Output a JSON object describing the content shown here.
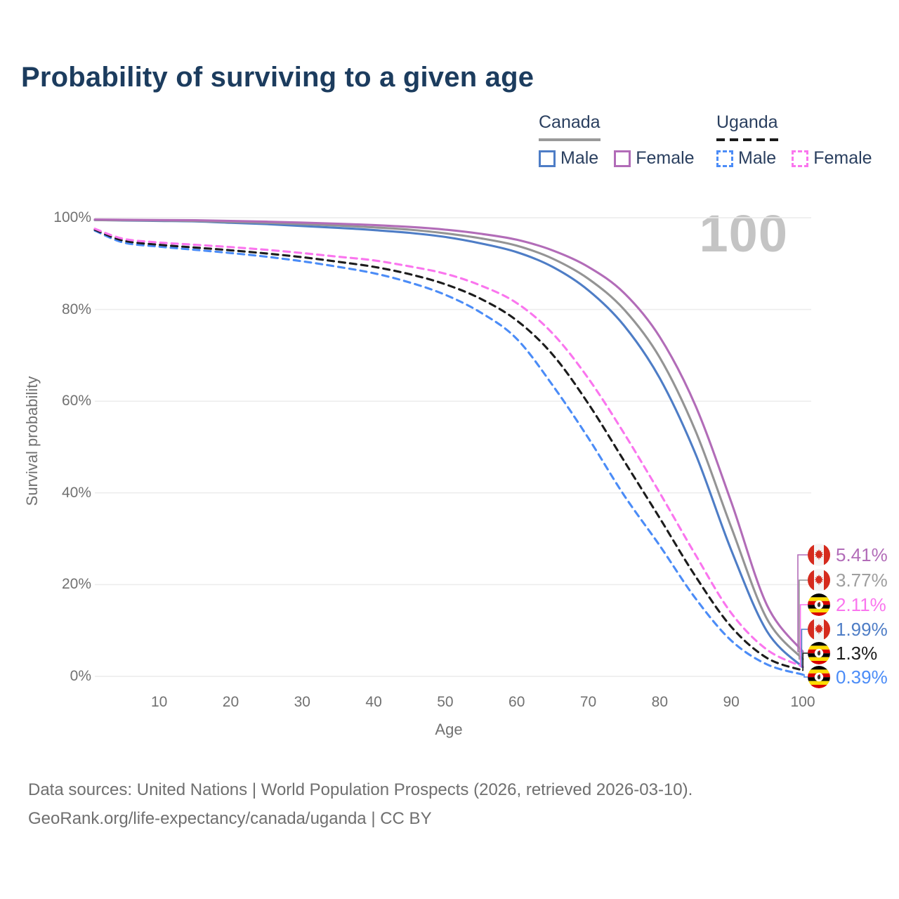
{
  "title": "Probability of surviving to a given age",
  "watermark_age": "100",
  "legend": {
    "groups": [
      {
        "label": "Canada",
        "underline": {
          "style": "solid",
          "color": "#9a9a9a"
        },
        "items": [
          {
            "label": "Male",
            "color": "#4e7dc6",
            "dashed": false
          },
          {
            "label": "Female",
            "color": "#b26cb8",
            "dashed": false
          }
        ]
      },
      {
        "label": "Uganda",
        "underline": {
          "style": "dashed",
          "color": "#1a1a1a"
        },
        "items": [
          {
            "label": "Male",
            "color": "#4b8cf7",
            "dashed": true
          },
          {
            "label": "Female",
            "color": "#fa75ee",
            "dashed": true
          }
        ]
      }
    ]
  },
  "axes": {
    "x": {
      "title": "Age",
      "ticks": [
        10,
        20,
        30,
        40,
        50,
        60,
        70,
        80,
        90,
        100
      ],
      "range": [
        1,
        100
      ]
    },
    "y": {
      "title": "Survival probability",
      "ticks": [
        "0%",
        "20%",
        "40%",
        "60%",
        "80%",
        "100%"
      ],
      "tick_values": [
        0,
        20,
        40,
        60,
        80,
        100
      ],
      "range": [
        0,
        100
      ]
    }
  },
  "chart_data": {
    "type": "line",
    "title": "Probability of surviving to a given age",
    "xlabel": "Age",
    "ylabel": "Survival probability",
    "xlim": [
      1,
      100
    ],
    "ylim": [
      0,
      100
    ],
    "grid": "horizontal",
    "x": [
      1,
      5,
      10,
      15,
      20,
      25,
      30,
      35,
      40,
      45,
      50,
      55,
      60,
      65,
      70,
      75,
      80,
      85,
      90,
      95,
      100
    ],
    "series": [
      {
        "key": "canada-female",
        "name": "Canada Female",
        "country": "Canada",
        "flag": "canada",
        "color": "#b26cb8",
        "dashed": false,
        "end_label": "5.41%",
        "values": [
          99.6,
          99.55,
          99.5,
          99.45,
          99.3,
          99.15,
          98.95,
          98.7,
          98.4,
          98.0,
          97.4,
          96.5,
          95.2,
          92.9,
          89.3,
          83.6,
          74.0,
          59.0,
          38.0,
          15.5,
          5.41
        ]
      },
      {
        "key": "canada-all",
        "name": "Canada",
        "country": "Canada",
        "flag": "canada",
        "color": "#949494",
        "dashed": false,
        "end_label": "3.77%",
        "values": [
          99.5,
          99.45,
          99.4,
          99.3,
          99.1,
          98.9,
          98.6,
          98.3,
          97.9,
          97.4,
          96.6,
          95.5,
          93.9,
          91.1,
          86.7,
          80.0,
          69.5,
          53.5,
          32.5,
          12.5,
          3.77
        ]
      },
      {
        "key": "uganda-female",
        "name": "Uganda Female",
        "country": "Uganda",
        "flag": "uganda",
        "color": "#fa75ee",
        "dashed": true,
        "end_label": "2.11%",
        "values": [
          97.6,
          95.4,
          94.6,
          94.1,
          93.6,
          93.0,
          92.3,
          91.5,
          90.7,
          89.4,
          87.8,
          85.2,
          81.4,
          74.8,
          65.0,
          53.0,
          40.0,
          26.5,
          13.8,
          5.8,
          2.11
        ]
      },
      {
        "key": "canada-male",
        "name": "Canada Male",
        "country": "Canada",
        "flag": "canada",
        "color": "#4e7dc6",
        "dashed": false,
        "end_label": "1.99%",
        "values": [
          99.5,
          99.4,
          99.3,
          99.2,
          98.9,
          98.6,
          98.2,
          97.8,
          97.3,
          96.7,
          95.8,
          94.4,
          92.5,
          89.3,
          84.2,
          76.5,
          65.0,
          48.5,
          27.5,
          9.8,
          1.99
        ]
      },
      {
        "key": "uganda-all",
        "name": "Uganda",
        "country": "Uganda",
        "flag": "uganda",
        "color": "#1c1c1c",
        "dashed": true,
        "end_label": "1.3%",
        "values": [
          97.4,
          95.0,
          94.1,
          93.5,
          92.9,
          92.2,
          91.4,
          90.4,
          89.3,
          87.7,
          85.5,
          82.3,
          77.6,
          70.2,
          59.5,
          47.0,
          34.5,
          21.8,
          10.8,
          4.0,
          1.3
        ]
      },
      {
        "key": "uganda-male",
        "name": "Uganda Male",
        "country": "Uganda",
        "flag": "uganda",
        "color": "#4b8cf7",
        "dashed": true,
        "end_label": "0.39%",
        "values": [
          97.2,
          94.6,
          93.7,
          93.0,
          92.3,
          91.5,
          90.5,
          89.3,
          87.9,
          85.9,
          83.2,
          79.3,
          73.6,
          63.5,
          52.0,
          39.5,
          28.5,
          17.0,
          7.8,
          2.6,
          0.39
        ]
      }
    ],
    "end_label_order": [
      "canada-female",
      "canada-all",
      "uganda-female",
      "canada-male",
      "uganda-all",
      "uganda-male"
    ],
    "end_label_colors": {
      "canada-female": "#b26cb8",
      "canada-all": "#9e9e9e",
      "uganda-female": "#fa75ee",
      "canada-male": "#4e7dc6",
      "uganda-all": "#1c1c1c",
      "uganda-male": "#4b8cf7"
    }
  },
  "footer": {
    "line1": "Data sources: United Nations | World Population Prospects (2026, retrieved 2026-03-10).",
    "line2": "GeoRank.org/life-expectancy/canada/uganda | CC BY"
  },
  "colors": {
    "title": "#1c3c5e",
    "axis_text": "#717171",
    "gridline": "#ececec",
    "watermark": "#c4c4c4",
    "flag_canada_red": "#d52b1e",
    "flag_uganda_black": "#000000",
    "flag_uganda_yellow": "#fcdc04",
    "flag_uganda_red": "#d90000"
  }
}
